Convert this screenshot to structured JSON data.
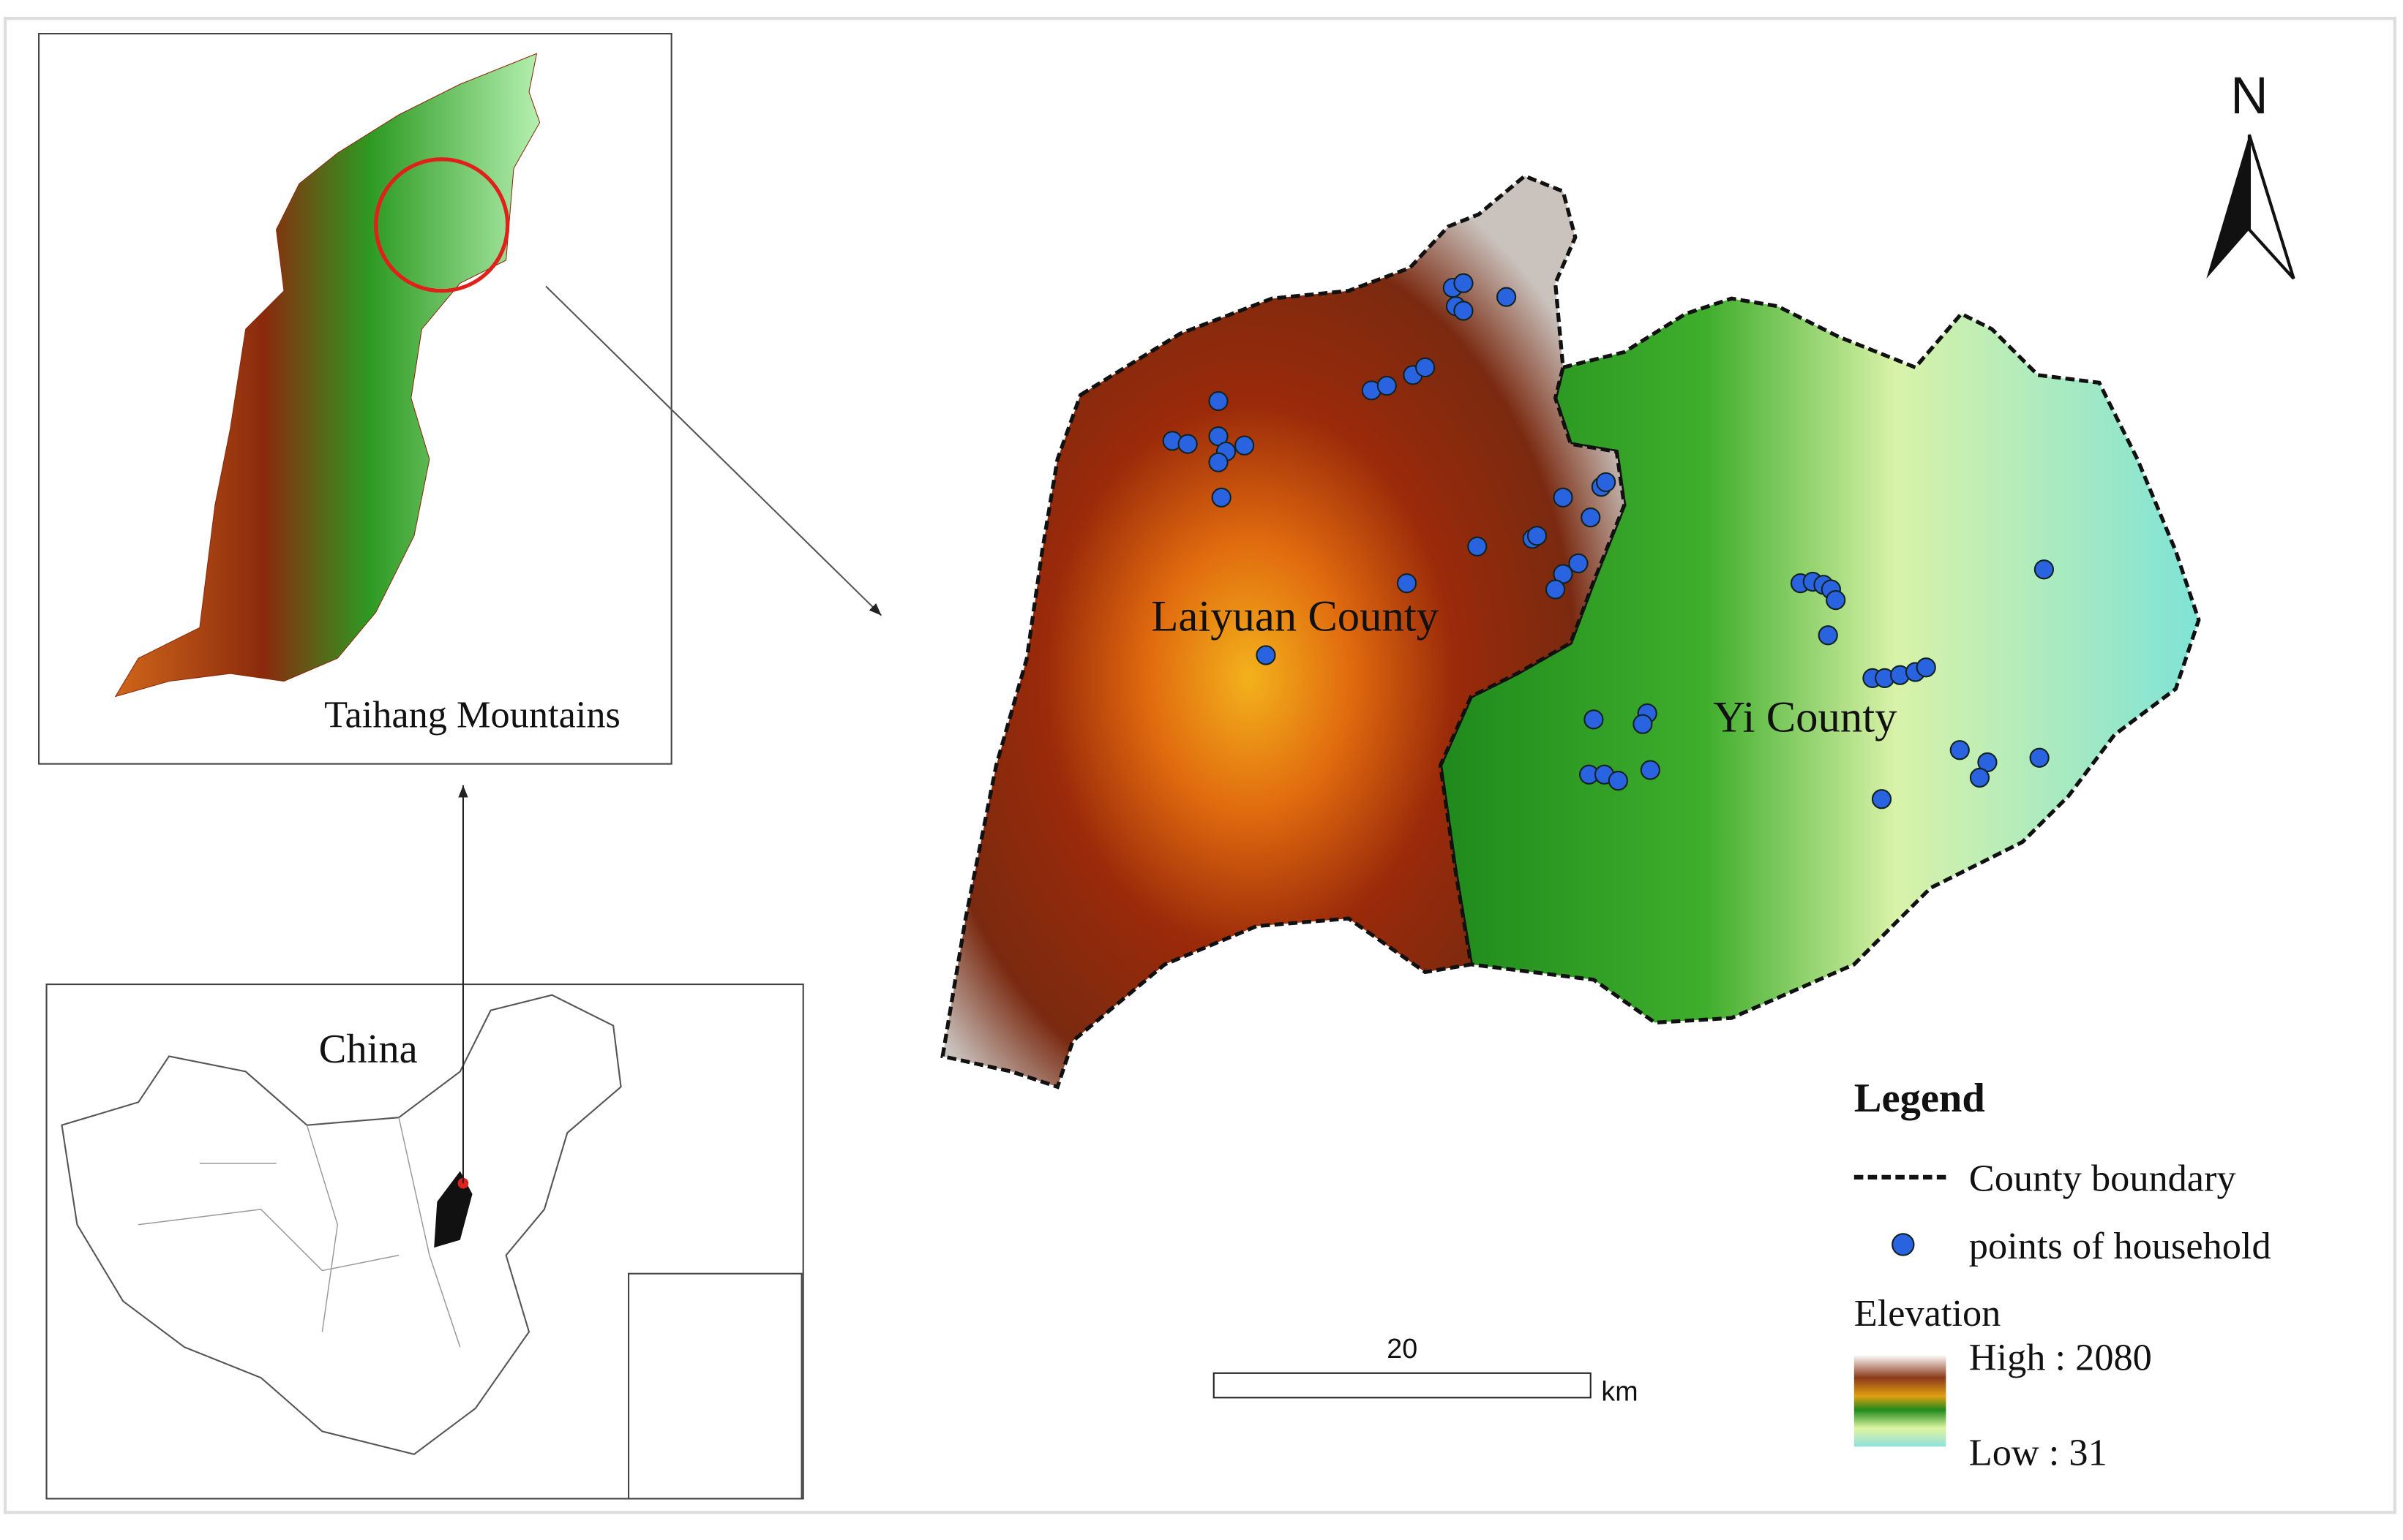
{
  "inset_taihang": {
    "label": "Taihang Mountains"
  },
  "inset_china": {
    "label": "China"
  },
  "map": {
    "counties": [
      "Laiyuan County",
      "Yi County"
    ],
    "north": "N"
  },
  "scale_bar": {
    "label": "20",
    "unit": "km"
  },
  "legend": {
    "title": "Legend",
    "items": [
      "County boundary",
      "points of household"
    ],
    "elevation": {
      "title": "Elevation",
      "high": "High : 2080",
      "low": "Low : 31"
    }
  }
}
